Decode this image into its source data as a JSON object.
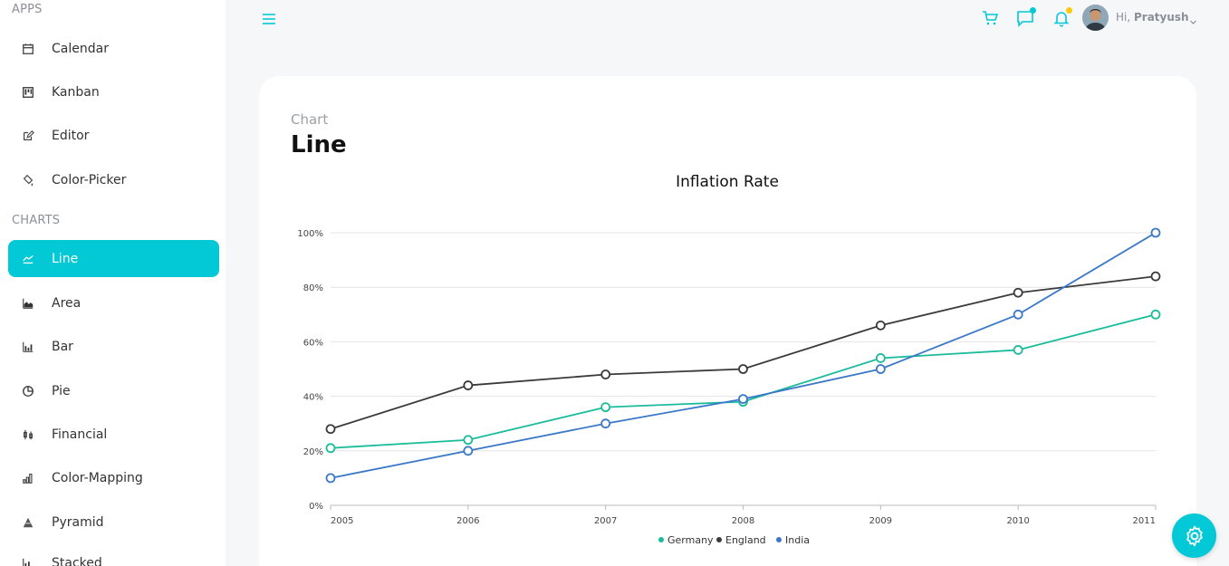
{
  "sidebar": {
    "apps_title": "APPS",
    "charts_title": "CHARTS",
    "apps": [
      {
        "label": "Calendar",
        "icon": "calendar-icon"
      },
      {
        "label": "Kanban",
        "icon": "kanban-icon"
      },
      {
        "label": "Editor",
        "icon": "edit-icon"
      },
      {
        "label": "Color-Picker",
        "icon": "paint-bucket-icon"
      }
    ],
    "charts": [
      {
        "label": "Line",
        "icon": "line-chart-icon",
        "active": true
      },
      {
        "label": "Area",
        "icon": "area-chart-icon"
      },
      {
        "label": "Bar",
        "icon": "bar-chart-icon"
      },
      {
        "label": "Pie",
        "icon": "pie-chart-icon"
      },
      {
        "label": "Financial",
        "icon": "stock-icon"
      },
      {
        "label": "Color-Mapping",
        "icon": "color-mapping-icon"
      },
      {
        "label": "Pyramid",
        "icon": "pyramid-icon"
      },
      {
        "label": "Stacked",
        "icon": "stacked-chart-icon"
      }
    ]
  },
  "topbar": {
    "greeting": "Hi,",
    "user_name": "Pratyush",
    "accent": "#03c9d7",
    "notification_dot": "#fec90f"
  },
  "page": {
    "subtitle": "Chart",
    "title": "Line"
  },
  "chart_data": {
    "type": "line",
    "title": "Inflation Rate",
    "x": [
      "2005",
      "2006",
      "2007",
      "2008",
      "2009",
      "2010",
      "2011"
    ],
    "ylim": [
      0,
      100
    ],
    "yticks": [
      "0%",
      "20%",
      "40%",
      "60%",
      "80%",
      "100%"
    ],
    "grid": true,
    "legend_position": "bottom",
    "series": [
      {
        "name": "Germany",
        "color": "#1abc9c",
        "values": [
          21,
          24,
          36,
          38,
          54,
          57,
          70
        ]
      },
      {
        "name": "England",
        "color": "#3a3a3a",
        "values": [
          28,
          44,
          48,
          50,
          66,
          78,
          84
        ]
      },
      {
        "name": "India",
        "color": "#3b78c8",
        "values": [
          10,
          20,
          30,
          39,
          50,
          70,
          100
        ]
      }
    ]
  }
}
